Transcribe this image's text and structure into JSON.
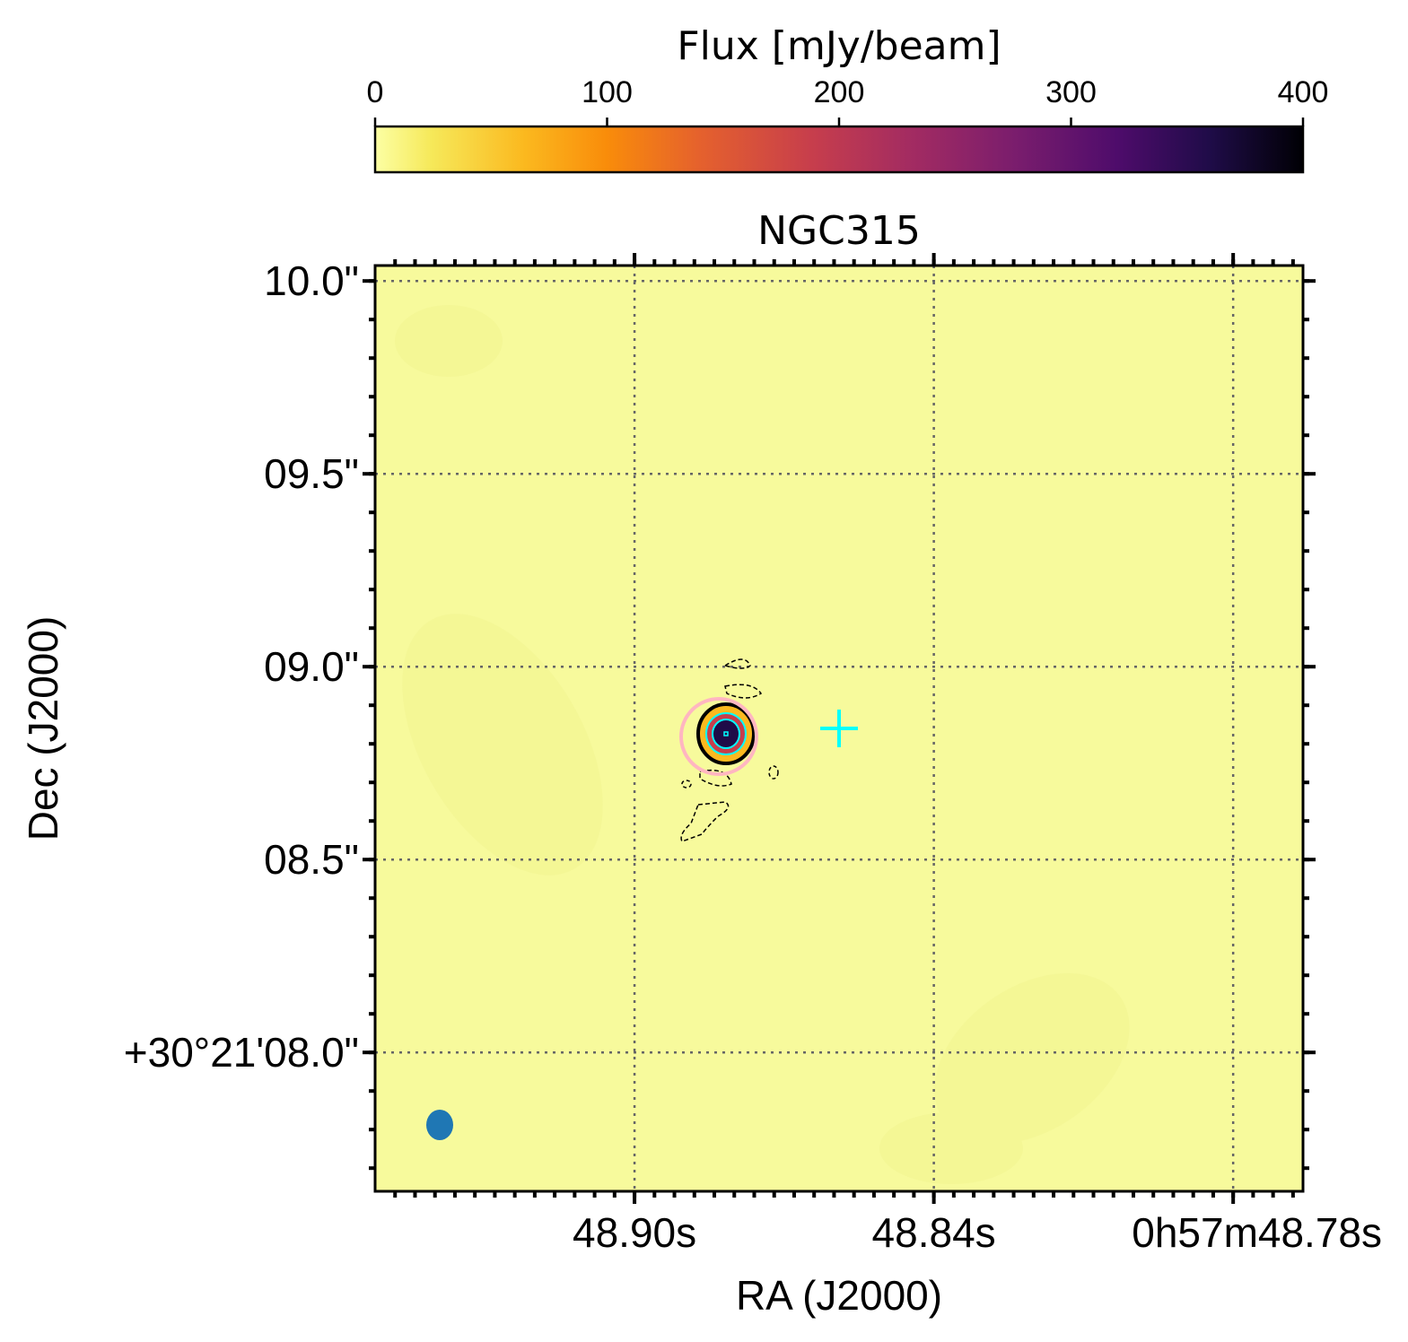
{
  "chart_data": {
    "type": "heatmap",
    "title": "NGC315",
    "xlabel": "RA (J2000)",
    "ylabel": "Dec (J2000)",
    "x_ticks": [
      {
        "label": "48.90s",
        "value": 48.9
      },
      {
        "label": "48.84s",
        "value": 48.84
      },
      {
        "label": "0h57m48.78s",
        "value": 48.78
      }
    ],
    "y_ticks": [
      {
        "label": "10.0\"",
        "value": 10.0
      },
      {
        "label": "09.5\"",
        "value": 9.5
      },
      {
        "label": "09.0\"",
        "value": 9.0
      },
      {
        "label": "08.5\"",
        "value": 8.5
      },
      {
        "label": "+30°21'08.0\"",
        "value": 8.0
      }
    ],
    "xlim": [
      48.952,
      48.766
    ],
    "ylim": [
      7.64,
      10.04
    ],
    "grid": true,
    "colorbar": {
      "label": "Flux [mJy/beam]",
      "colormap": "inferno_r",
      "range": [
        0,
        400
      ],
      "ticks": [
        "0",
        "100",
        "200",
        "300",
        "400"
      ],
      "placement": "top"
    },
    "source": {
      "ra_s": 48.871,
      "dec_arcsec": 8.83,
      "peak_mjy_beam": 400
    },
    "cross_marker": {
      "ra_s": 48.859,
      "dec_arcsec": 8.84,
      "color": "#00ffff"
    },
    "beam": {
      "color": "#1f77b4",
      "position": "bottom-left"
    }
  }
}
